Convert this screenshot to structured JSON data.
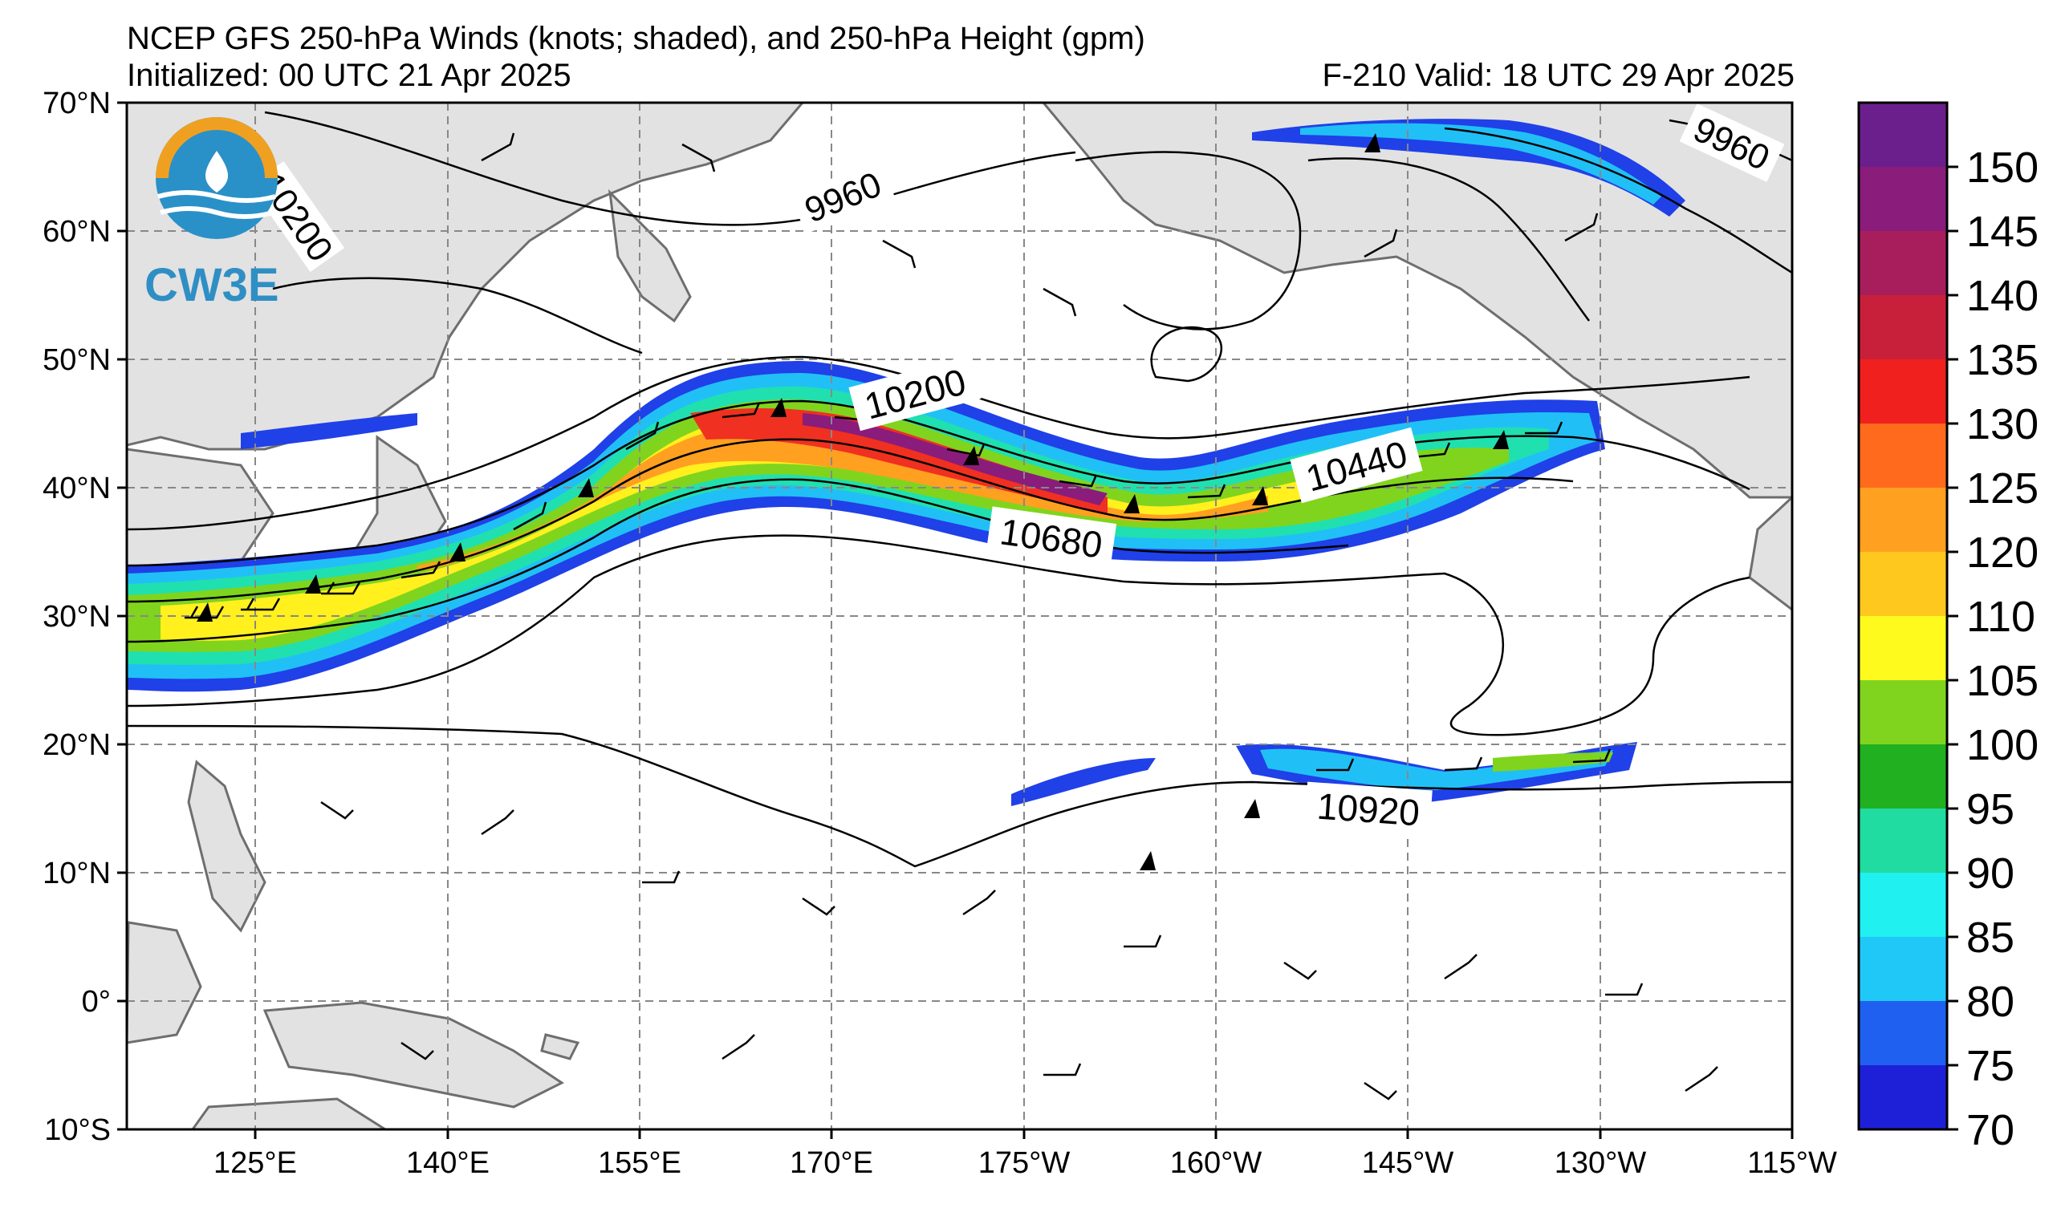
{
  "header": {
    "title": "NCEP GFS 250-hPa Winds (knots; shaded), and 250-hPa Height (gpm)",
    "initialized": "Initialized: 00 UTC 21 Apr 2025",
    "valid": "F-210  Valid: 18 UTC 29 Apr 2025"
  },
  "logo": {
    "text": "CW3E"
  },
  "map": {
    "lat_labels": [
      "70°N",
      "60°N",
      "50°N",
      "40°N",
      "30°N",
      "20°N",
      "10°N",
      "0°",
      "10°S"
    ],
    "lon_labels": [
      "125°E",
      "140°E",
      "155°E",
      "170°E",
      "175°W",
      "160°W",
      "145°W",
      "130°W",
      "115°W"
    ],
    "height_contour_labels": [
      {
        "text": "9960",
        "rot": -22
      },
      {
        "text": "10200",
        "rot": -15
      },
      {
        "text": "10440",
        "rot": -15
      },
      {
        "text": "10680",
        "rot": 8
      },
      {
        "text": "10920",
        "rot": 4
      },
      {
        "text": "9960",
        "rot": 25
      },
      {
        "text": "10200",
        "rot": 55
      }
    ]
  },
  "colorbar": {
    "labels": [
      "150",
      "145",
      "140",
      "135",
      "130",
      "125",
      "120",
      "110",
      "105",
      "100",
      "95",
      "90",
      "85",
      "80",
      "75",
      "70"
    ],
    "colors": [
      "#6b1f8c",
      "#8a1c7c",
      "#a81e5c",
      "#c8203a",
      "#f0201e",
      "#ff6a1c",
      "#ffa020",
      "#ffc81e",
      "#fffa1e",
      "#80d41e",
      "#20b020",
      "#20dca0",
      "#20f0f0",
      "#20c8f8",
      "#2060f0",
      "#1e20d8"
    ]
  }
}
